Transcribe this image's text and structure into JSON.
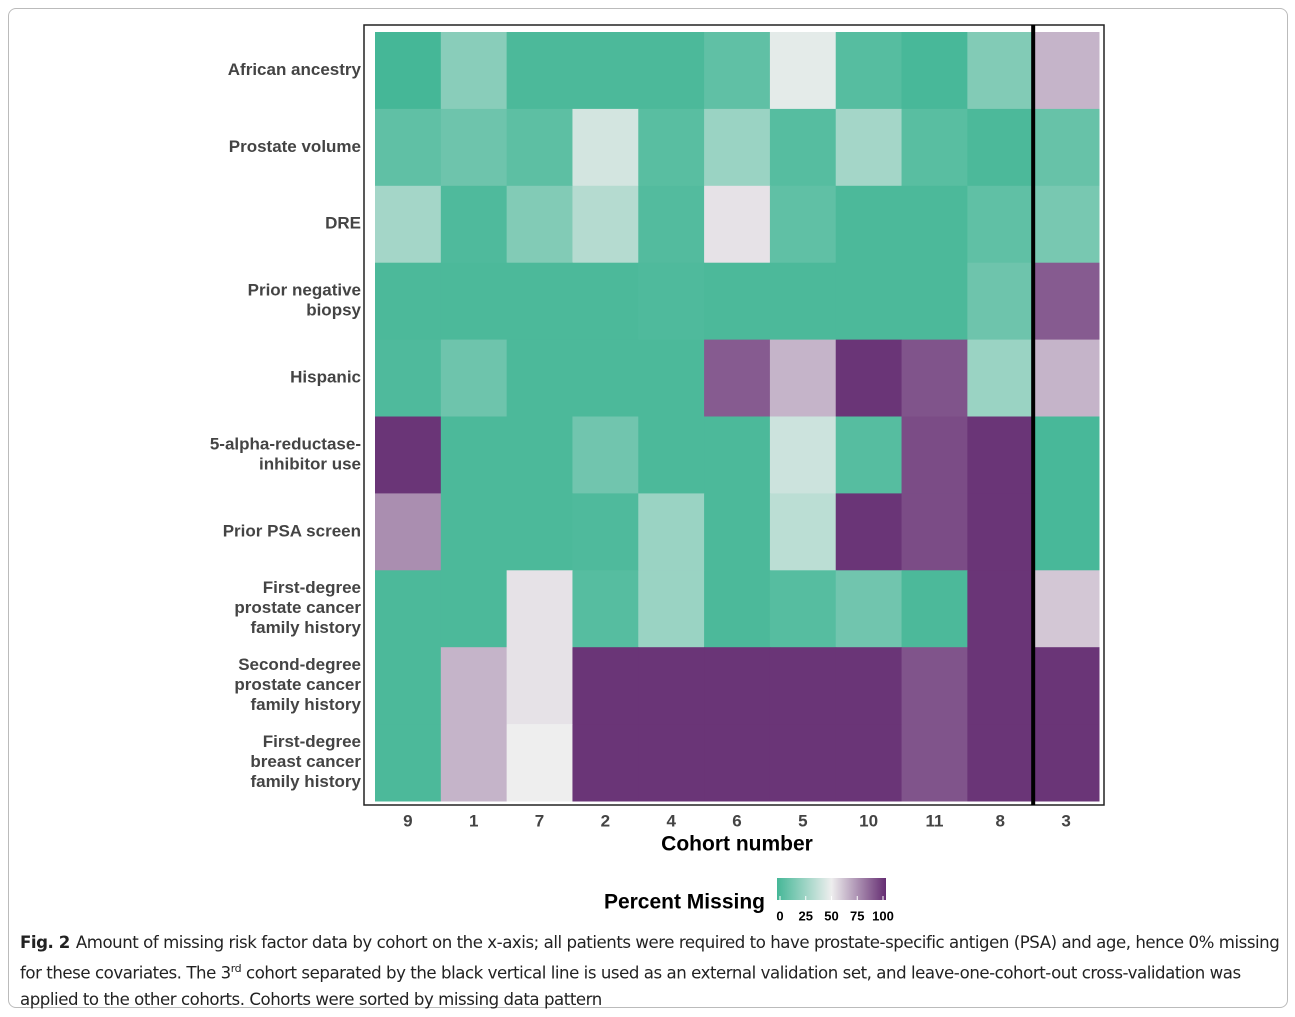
{
  "chart_data": {
    "type": "heatmap",
    "x_label": "Cohort number",
    "x_categories": [
      "9",
      "1",
      "7",
      "2",
      "4",
      "6",
      "5",
      "10",
      "11",
      "8",
      "3"
    ],
    "y_categories": [
      [
        "African ancestry"
      ],
      [
        "Prostate volume"
      ],
      [
        "DRE"
      ],
      [
        "Prior negative",
        "biopsy"
      ],
      [
        "Hispanic"
      ],
      [
        "5-alpha-reductase-",
        "inhibitor use"
      ],
      [
        "Prior PSA screen"
      ],
      [
        "First-degree",
        "prostate cancer",
        "family history"
      ],
      [
        "Second-degree",
        "prostate cancer",
        "family history"
      ],
      [
        "First-degree",
        "breast cancer",
        "family history"
      ]
    ],
    "values": [
      [
        0,
        20,
        2,
        2,
        2,
        8,
        47,
        5,
        1,
        18,
        65
      ],
      [
        8,
        12,
        7,
        42,
        6,
        25,
        5,
        28,
        6,
        2,
        10
      ],
      [
        28,
        3,
        18,
        33,
        4,
        53,
        8,
        2,
        2,
        8,
        15
      ],
      [
        2,
        2,
        2,
        2,
        3,
        2,
        2,
        2,
        2,
        12,
        88
      ],
      [
        3,
        12,
        2,
        2,
        2,
        88,
        65,
        98,
        90,
        25,
        65
      ],
      [
        98,
        2,
        2,
        13,
        2,
        2,
        40,
        5,
        92,
        98,
        1
      ],
      [
        75,
        2,
        2,
        3,
        25,
        2,
        35,
        98,
        92,
        98,
        1
      ],
      [
        2,
        2,
        53,
        5,
        25,
        2,
        5,
        13,
        2,
        98,
        60
      ],
      [
        2,
        65,
        53,
        98,
        98,
        98,
        98,
        98,
        90,
        98,
        98
      ],
      [
        2,
        65,
        50,
        98,
        98,
        98,
        98,
        98,
        90,
        98,
        98
      ]
    ],
    "colorscale": [
      "#45b797",
      "#eeeeee",
      "#652d72"
    ],
    "color_range": [
      0,
      100
    ],
    "separator_index": 10,
    "legend_title": "Percent Missing",
    "legend_ticks": [
      0,
      25,
      50,
      75,
      100
    ]
  },
  "caption": {
    "label": "Fig. 2",
    "parts": [
      "Amount of missing risk factor data by cohort on the x-axis; all patients were required to have prostate-specific antigen (PSA) and age, hence 0% missing for these covariates. The 3",
      "rd",
      " cohort separated by the black vertical line is used as an external validation set, and leave-one-cohort-out cross-validation was applied to the other cohorts. Cohorts were sorted by missing data pattern"
    ]
  }
}
